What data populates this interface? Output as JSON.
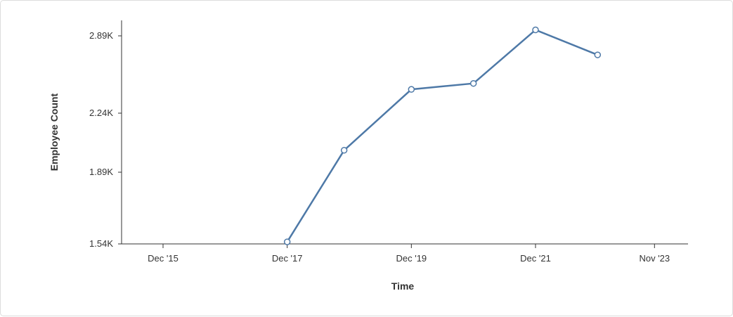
{
  "chart_data": {
    "type": "line",
    "xlabel": "Time",
    "ylabel": "Employee Count",
    "x_ticks": [
      "Dec '15",
      "Dec '17",
      "Dec '19",
      "Dec '21",
      "Nov '23"
    ],
    "y_ticks": [
      "2.89K",
      "2.24K",
      "1.89K",
      "1.54K"
    ],
    "ylim": [
      1540,
      2890
    ],
    "series": [
      {
        "color": "#4e79a7",
        "points": [
          {
            "x": "2017-12",
            "y": 1550
          },
          {
            "x": "2018-11",
            "y": 2020
          },
          {
            "x": "2019-12",
            "y": 2440
          },
          {
            "x": "2020-12",
            "y": 2490
          },
          {
            "x": "2021-12",
            "y": 2940
          },
          {
            "x": "2022-12",
            "y": 2730
          }
        ]
      }
    ],
    "grid": false
  }
}
